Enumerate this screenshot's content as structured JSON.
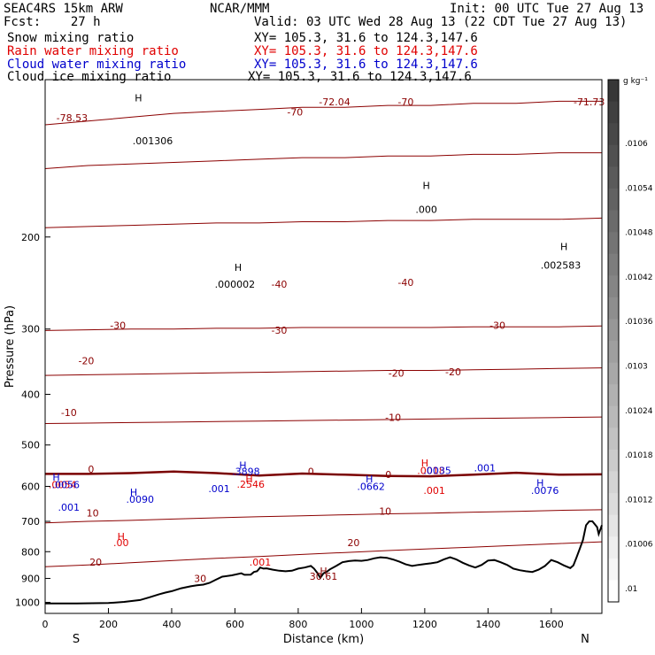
{
  "header": {
    "model": "SEAC4RS 15km ARW",
    "forecast": "Fcst:    27 h",
    "center": "NCAR/MMM",
    "init": "Init: 00 UTC Tue 27 Aug 13",
    "valid": "Valid: 03 UTC Wed 28 Aug 13 (22 CDT Tue 27 Aug 13)",
    "fields": [
      {
        "name": "Snow mixing ratio",
        "xy": "XY= 105.3, 31.6 to 124.3,147.6",
        "color": "#000000"
      },
      {
        "name": "Rain water mixing ratio",
        "xy": "XY= 105.3, 31.6 to 124.3,147.6",
        "color": "#e00000"
      },
      {
        "name": "Cloud water mixing ratio",
        "xy": "XY= 105.3, 31.6 to 124.3,147.6",
        "color": "#0000cc"
      },
      {
        "name": "Cloud ice mixing ratio",
        "xy": "XY= 105.3, 31.6 to 124.3,147.6",
        "color": "#000000"
      }
    ]
  },
  "chart_data": {
    "type": "line",
    "xlabel": "Distance (km)",
    "ylabel": "Pressure (hPa)",
    "xlim": [
      0,
      1760
    ],
    "ylim": [
      1050,
      100
    ],
    "x_ticks": [
      0,
      200,
      400,
      600,
      800,
      1000,
      1200,
      1400,
      1600
    ],
    "y_ticks": [
      200,
      300,
      400,
      500,
      600,
      700,
      800,
      900,
      1000
    ],
    "y_tick_labels": [
      "200",
      "300",
      "400",
      "500",
      "600",
      "700",
      "800",
      "900",
      "1000"
    ],
    "endpoints": {
      "left": "S",
      "right": "N"
    },
    "colorbar": {
      "unit": "g kg⁻¹",
      "labels": [
        ".0106",
        ".01054",
        ".01048",
        ".01042",
        ".01036",
        ".0103",
        ".01024",
        ".01018",
        ".01012",
        ".01006",
        ".01"
      ]
    },
    "terrain": {
      "x": [
        0,
        100,
        200,
        250,
        300,
        330,
        360,
        380,
        400,
        430,
        460,
        480,
        500,
        520,
        540,
        560,
        590,
        620,
        630,
        650,
        660,
        670,
        680,
        690,
        700,
        720,
        740,
        760,
        780,
        800,
        820,
        840,
        850,
        860,
        870,
        880,
        890,
        900,
        920,
        940,
        960,
        980,
        1000,
        1020,
        1040,
        1060,
        1080,
        1100,
        1120,
        1140,
        1160,
        1180,
        1200,
        1220,
        1240,
        1260,
        1280,
        1300,
        1320,
        1340,
        1360,
        1380,
        1400,
        1420,
        1440,
        1460,
        1480,
        1500,
        1520,
        1540,
        1560,
        1580,
        1600,
        1620,
        1640,
        1660,
        1670,
        1680,
        1690,
        1700,
        1710,
        1720,
        1730,
        1745,
        1750,
        1760
      ],
      "p": [
        1005,
        1005,
        1003,
        998,
        990,
        978,
        965,
        958,
        952,
        940,
        932,
        928,
        925,
        918,
        905,
        893,
        888,
        880,
        886,
        885,
        875,
        872,
        858,
        862,
        861,
        866,
        870,
        872,
        870,
        862,
        858,
        852,
        862,
        878,
        898,
        880,
        874,
        865,
        852,
        838,
        834,
        832,
        833,
        830,
        824,
        820,
        822,
        828,
        836,
        846,
        852,
        848,
        845,
        842,
        838,
        828,
        820,
        828,
        840,
        850,
        858,
        848,
        832,
        830,
        838,
        848,
        862,
        868,
        872,
        875,
        866,
        852,
        830,
        838,
        850,
        860,
        850,
        820,
        790,
        760,
        712,
        700,
        700,
        718,
        740,
        712
      ]
    },
    "isotherms": [
      {
        "value": -70,
        "p": [
          122,
          120,
          118,
          116,
          115,
          114,
          113,
          113,
          112,
          112,
          111,
          111,
          110,
          110
        ]
      },
      {
        "value": -50,
        "p": [
          148,
          146,
          145,
          144,
          143,
          142,
          141,
          141,
          140,
          140,
          139,
          139,
          138,
          138
        ]
      },
      {
        "value": -40,
        "p": [
          192,
          191,
          190,
          189,
          188,
          188,
          187,
          187,
          186,
          186,
          185,
          185,
          185,
          184
        ]
      },
      {
        "value": -30,
        "p": [
          302,
          301,
          300,
          300,
          299,
          299,
          298,
          298,
          298,
          298,
          297,
          297,
          297,
          296
        ]
      },
      {
        "value": -20,
        "p": [
          368,
          367,
          366,
          365,
          364,
          363,
          362,
          361,
          360,
          360,
          359,
          358,
          357,
          356
        ]
      },
      {
        "value": -10,
        "p": [
          455,
          454,
          453,
          452,
          451,
          450,
          449,
          448,
          447,
          446,
          445,
          444,
          443,
          442
        ]
      },
      {
        "value": 0,
        "p": [
          568,
          568,
          566,
          562,
          566,
          572,
          567,
          570,
          573,
          574,
          570,
          565,
          570,
          569
        ]
      },
      {
        "value": 10,
        "p": [
          705,
          700,
          697,
          693,
          689,
          686,
          683,
          680,
          677,
          675,
          672,
          670,
          667,
          665
        ]
      },
      {
        "value": 20,
        "p": [
          855,
          848,
          840,
          832,
          824,
          817,
          810,
          803,
          796,
          790,
          784,
          778,
          772,
          766
        ]
      }
    ],
    "labels": [
      {
        "text": "-78.53",
        "x": 85,
        "p": 120,
        "color": "#8b0000"
      },
      {
        "text": "H",
        "x": 295,
        "p": 110,
        "color": "#000000"
      },
      {
        "text": ".001306",
        "x": 340,
        "p": 133,
        "color": "#000000"
      },
      {
        "text": "-70",
        "x": 790,
        "p": 117,
        "color": "#8b0000"
      },
      {
        "text": "-72.04",
        "x": 915,
        "p": 112,
        "color": "#8b0000"
      },
      {
        "text": "-70",
        "x": 1140,
        "p": 112,
        "color": "#8b0000"
      },
      {
        "text": "-71.73",
        "x": 1720,
        "p": 112,
        "color": "#8b0000"
      },
      {
        "text": "H",
        "x": 1205,
        "p": 162,
        "color": "#000000"
      },
      {
        "text": ".000",
        "x": 1205,
        "p": 180,
        "color": "#000000"
      },
      {
        "text": "H",
        "x": 1640,
        "p": 212,
        "color": "#000000"
      },
      {
        "text": ".002583",
        "x": 1630,
        "p": 230,
        "color": "#000000"
      },
      {
        "text": "H",
        "x": 610,
        "p": 232,
        "color": "#000000"
      },
      {
        "text": ".000002",
        "x": 600,
        "p": 250,
        "color": "#000000"
      },
      {
        "text": "-40",
        "x": 740,
        "p": 250,
        "color": "#8b0000"
      },
      {
        "text": "-40",
        "x": 1140,
        "p": 248,
        "color": "#8b0000"
      },
      {
        "text": "-30",
        "x": 230,
        "p": 300,
        "color": "#8b0000"
      },
      {
        "text": "-30",
        "x": 740,
        "p": 306,
        "color": "#8b0000"
      },
      {
        "text": "-30",
        "x": 1430,
        "p": 300,
        "color": "#8b0000"
      },
      {
        "text": "-20",
        "x": 130,
        "p": 350,
        "color": "#8b0000"
      },
      {
        "text": "-20",
        "x": 1110,
        "p": 370,
        "color": "#8b0000"
      },
      {
        "text": "-20",
        "x": 1290,
        "p": 368,
        "color": "#8b0000"
      },
      {
        "text": "-10",
        "x": 75,
        "p": 440,
        "color": "#8b0000"
      },
      {
        "text": "-10",
        "x": 1100,
        "p": 450,
        "color": "#8b0000"
      },
      {
        "text": "0",
        "x": 145,
        "p": 565,
        "color": "#8b0000"
      },
      {
        "text": "0",
        "x": 840,
        "p": 570,
        "color": "#8b0000"
      },
      {
        "text": "0",
        "x": 1085,
        "p": 578,
        "color": "#8b0000"
      },
      {
        "text": "H",
        "x": 35,
        "p": 585,
        "color": "#0000cc"
      },
      {
        "text": ".0054",
        "x": 55,
        "p": 605,
        "color": "#e00000"
      },
      {
        "text": ".0056",
        "x": 65,
        "p": 605,
        "color": "#0000cc"
      },
      {
        "text": "H",
        "x": 280,
        "p": 625,
        "color": "#0000cc"
      },
      {
        "text": ".0090",
        "x": 300,
        "p": 645,
        "color": "#0000cc"
      },
      {
        "text": ".001",
        "x": 550,
        "p": 615,
        "color": "#0000cc"
      },
      {
        "text": "H",
        "x": 625,
        "p": 555,
        "color": "#0000cc"
      },
      {
        "text": ".3898",
        "x": 635,
        "p": 570,
        "color": "#0000cc"
      },
      {
        "text": "H",
        "x": 645,
        "p": 590,
        "color": "#e00000"
      },
      {
        "text": ".2546",
        "x": 650,
        "p": 603,
        "color": "#e00000"
      },
      {
        "text": "H",
        "x": 1025,
        "p": 590,
        "color": "#0000cc"
      },
      {
        "text": ".0662",
        "x": 1030,
        "p": 610,
        "color": "#0000cc"
      },
      {
        "text": "H",
        "x": 1200,
        "p": 550,
        "color": "#e00000"
      },
      {
        "text": ".0018",
        "x": 1220,
        "p": 568,
        "color": "#e00000"
      },
      {
        "text": ".0035",
        "x": 1240,
        "p": 568,
        "color": "#0000cc"
      },
      {
        "text": ".001",
        "x": 1230,
        "p": 620,
        "color": "#e00000"
      },
      {
        "text": ".001",
        "x": 1390,
        "p": 562,
        "color": "#0000cc"
      },
      {
        "text": "H",
        "x": 1565,
        "p": 600,
        "color": "#0000cc"
      },
      {
        "text": ".0076",
        "x": 1580,
        "p": 620,
        "color": "#0000cc"
      },
      {
        "text": ".001",
        "x": 75,
        "p": 668,
        "color": "#0000cc"
      },
      {
        "text": "10",
        "x": 150,
        "p": 685,
        "color": "#8b0000"
      },
      {
        "text": "10",
        "x": 1075,
        "p": 680,
        "color": "#8b0000"
      },
      {
        "text": "H",
        "x": 240,
        "p": 760,
        "color": "#e00000"
      },
      {
        "text": ".00",
        "x": 240,
        "p": 780,
        "color": "#e00000"
      },
      {
        "text": "20",
        "x": 975,
        "p": 780,
        "color": "#8b0000"
      },
      {
        "text": "20",
        "x": 160,
        "p": 850,
        "color": "#8b0000"
      },
      {
        "text": ".001",
        "x": 680,
        "p": 850,
        "color": "#e00000"
      },
      {
        "text": "H",
        "x": 880,
        "p": 885,
        "color": "#8b0000"
      },
      {
        "text": "30.61",
        "x": 880,
        "p": 905,
        "color": "#8b0000"
      },
      {
        "text": "30",
        "x": 490,
        "p": 915,
        "color": "#8b0000"
      }
    ]
  },
  "colors": {
    "isotherm": "#8b0000",
    "freezing": "#7a0000",
    "rain": "#e00000",
    "cloud": "#0000cc",
    "terrain": "#000000"
  }
}
